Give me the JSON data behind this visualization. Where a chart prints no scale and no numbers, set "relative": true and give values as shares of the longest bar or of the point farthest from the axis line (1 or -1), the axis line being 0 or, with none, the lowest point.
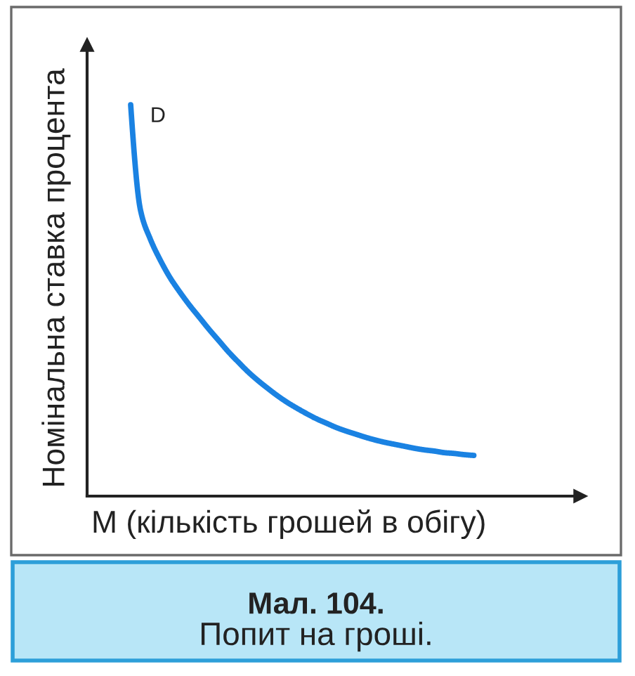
{
  "chart_data": {
    "type": "line",
    "relative": true,
    "xlabel": "M (кількість грошей в обігу)",
    "ylabel": "Номінальна ставка процента",
    "categories": [
      null,
      null,
      null,
      null,
      null,
      null,
      null,
      null,
      null,
      null,
      null,
      null,
      null,
      null,
      null,
      null,
      null,
      null,
      null,
      null,
      null,
      null,
      null,
      null,
      null,
      null,
      null,
      null,
      null,
      null,
      null,
      null,
      null,
      null,
      null,
      null
    ],
    "series": [
      {
        "name": "D",
        "color": "#1a82e2",
        "values": [
          1,
          0.731,
          0.657,
          0.604,
          0.559,
          0.522,
          0.488,
          0.457,
          0.426,
          0.397,
          0.368,
          0.342,
          0.317,
          0.295,
          0.275,
          0.256,
          0.239,
          0.224,
          0.21,
          0.197,
          0.186,
          0.175,
          0.166,
          0.158,
          0.15,
          0.143,
          0.137,
          0.132,
          0.127,
          0.122,
          0.118,
          0.115,
          0.111,
          0.109,
          0.106,
          0.104
        ]
      }
    ],
    "annotations": [
      "Мал. 104.",
      "Попит на гроші."
    ]
  }
}
